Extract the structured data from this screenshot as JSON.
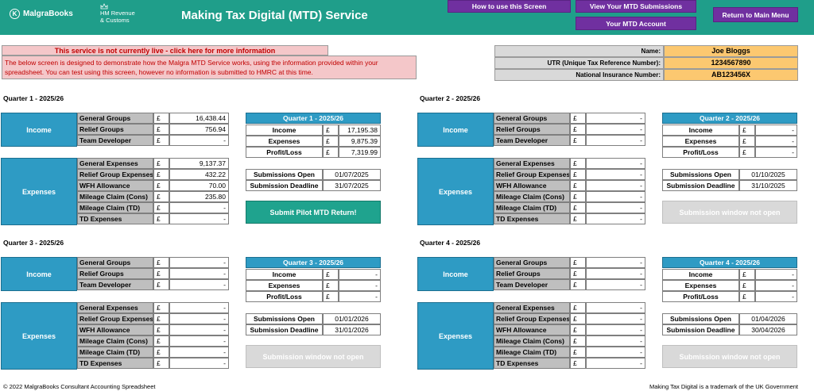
{
  "header": {
    "brand": "MalgraBooks",
    "brand_glyph": "K",
    "hmrc_line1": "HM Revenue",
    "hmrc_line2": "& Customs",
    "title": "Making Tax Digital (MTD) Service",
    "buttons": {
      "how_to": "How to use this Screen",
      "view_submissions": "View Your MTD Submissions",
      "account": "Your MTD Account",
      "return_main": "Return to Main Menu"
    },
    "colors": {
      "header_bg": "#1f9e8a",
      "button_bg": "#7030a0"
    }
  },
  "notice": {
    "title": "This service is not currently live - click here for more information",
    "body": "The below screen is designed to demonstrate how the Malgra MTD Service works, using the information provided within your spreadsheet. You can test using this screen, however no information is submitted to HMRC at this time."
  },
  "taxpayer": {
    "name_label": "Name:",
    "name": "Joe Bloggs",
    "utr_label": "UTR (Unique Tax Reference Number):",
    "utr": "1234567890",
    "nin_label": "National Insurance Number:",
    "nin": "AB123456X"
  },
  "labels": {
    "income": "Income",
    "expenses": "Expenses",
    "income_rows": [
      "General Groups",
      "Relief Groups",
      "Team Developer"
    ],
    "expense_rows": [
      "General Expenses",
      "Relief Group Expenses",
      "WFH Allowance",
      "Mileage Claim (Cons)",
      "Mileage Claim (TD)",
      "TD Expenses"
    ],
    "summary_rows": [
      "Income",
      "Expenses",
      "Profit/Loss"
    ],
    "submissions_open": "Submissions Open",
    "submission_deadline": "Submission Deadline",
    "currency": "£"
  },
  "quarters": [
    {
      "title": "Quarter 1 - 2025/26",
      "income": [
        "16,438.44",
        "756.94",
        "-"
      ],
      "expenses": [
        "9,137.37",
        "432.22",
        "70.00",
        "235.80",
        "-",
        "-"
      ],
      "summary": [
        "17,195.38",
        "9,875.39",
        "7,319.99"
      ],
      "open": "01/07/2025",
      "deadline": "31/07/2025",
      "button": "Submit Pilot MTD Return!",
      "button_active": true
    },
    {
      "title": "Quarter 2 - 2025/26",
      "income": [
        "-",
        "-",
        "-"
      ],
      "expenses": [
        "-",
        "-",
        "-",
        "-",
        "-",
        "-"
      ],
      "summary": [
        "-",
        "-",
        "-"
      ],
      "open": "01/10/2025",
      "deadline": "31/10/2025",
      "button": "Submission window not open",
      "button_active": false
    },
    {
      "title": "Quarter 3 - 2025/26",
      "income": [
        "-",
        "-",
        "-"
      ],
      "expenses": [
        "-",
        "-",
        "-",
        "-",
        "-",
        "-"
      ],
      "summary": [
        "-",
        "-",
        "-"
      ],
      "open": "01/01/2026",
      "deadline": "31/01/2026",
      "button": "Submission window not open",
      "button_active": false
    },
    {
      "title": "Quarter 4 - 2025/26",
      "income": [
        "-",
        "-",
        "-"
      ],
      "expenses": [
        "-",
        "-",
        "-",
        "-",
        "-",
        "-"
      ],
      "summary": [
        "-",
        "-",
        "-"
      ],
      "open": "01/04/2026",
      "deadline": "30/04/2026",
      "button": "Submission window not open",
      "button_active": false
    }
  ],
  "footer": {
    "left": "© 2022 MalgraBooks Consultant Accounting Spreadsheet",
    "right": "Making Tax Digital is a trademark of the UK Government"
  }
}
